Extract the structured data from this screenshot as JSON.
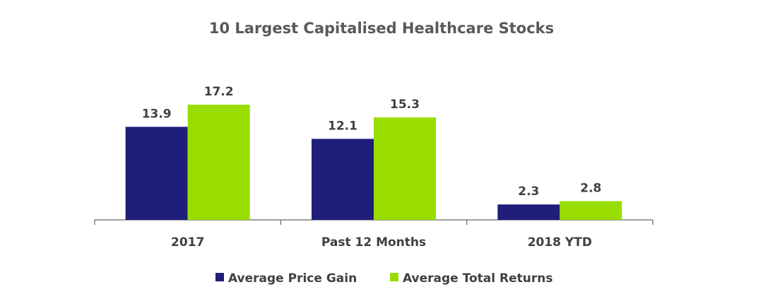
{
  "chart_data": {
    "type": "bar",
    "title": "10 Largest Capitalised Healthcare Stocks",
    "xlabel": "",
    "ylabel": "",
    "categories": [
      "2017",
      "Past 12 Months",
      "2018 YTD"
    ],
    "series": [
      {
        "name": "Average Price Gain",
        "values": [
          13.9,
          12.1,
          2.3
        ],
        "color": "#1f1f7a"
      },
      {
        "name": "Average Total Returns",
        "values": [
          17.2,
          15.3,
          2.8
        ],
        "color": "#99dd00"
      }
    ],
    "ylim": [
      0,
      20
    ],
    "grid": false,
    "legend": "bottom-center"
  }
}
